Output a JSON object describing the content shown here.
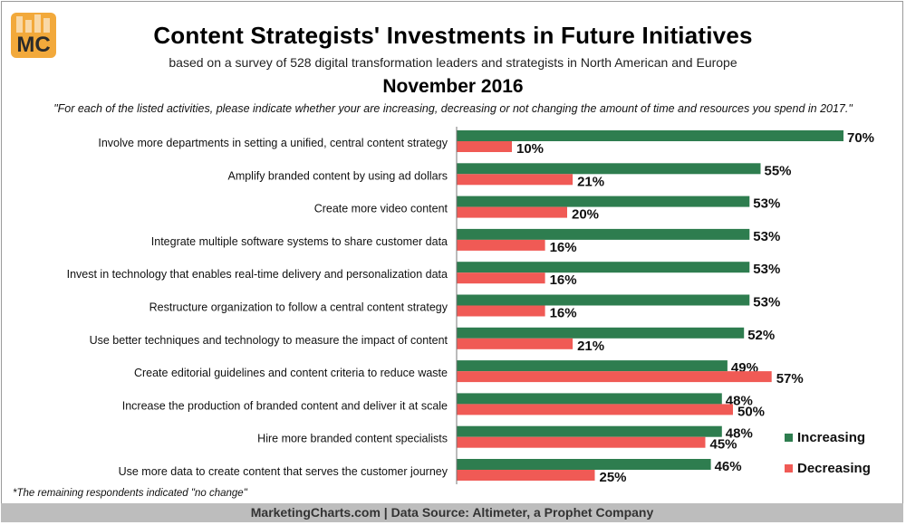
{
  "logo": {
    "text": "MC"
  },
  "colors": {
    "increasing": "#2e7d4f",
    "decreasing": "#f05a55",
    "logo_bg": "#f2a93b",
    "footer_bg": "#bdbdbd"
  },
  "footnote": "*The remaining respondents indicated \"no change\"",
  "footer": "MarketingCharts.com | Data Source: Altimeter, a Prophet Company",
  "chart_data": {
    "type": "bar",
    "orientation": "horizontal",
    "title": "Content Strategists' Investments in Future Initiatives",
    "subtitle": "based on a survey of 528 digital transformation leaders and strategists in North American and Europe",
    "date": "November 2016",
    "question": "\"For each of the listed activities, please indicate whether your are increasing, decreasing or not changing the amount of time and resources you spend in 2017.\"",
    "value_suffix": "%",
    "xlim": [
      0,
      70
    ],
    "legend_position": "bottom-right",
    "categories": [
      "Involve more departments in setting a unified, central content strategy",
      "Amplify branded content by using ad dollars",
      "Create more video content",
      "Integrate multiple software systems to share customer data",
      "Invest in technology that enables real-time delivery and personalization data",
      "Restructure organization to follow a central content strategy",
      "Use better techniques and technology to measure the impact of content",
      "Create editorial guidelines and content criteria to reduce waste",
      "Increase the production of branded content and deliver it at scale",
      "Hire more branded content specialists",
      "Use more data to create content that serves the customer journey"
    ],
    "series": [
      {
        "name": "Increasing",
        "values": [
          70,
          55,
          53,
          53,
          53,
          53,
          52,
          49,
          48,
          48,
          46
        ]
      },
      {
        "name": "Decreasing",
        "values": [
          10,
          21,
          20,
          16,
          16,
          16,
          21,
          57,
          50,
          45,
          25
        ]
      }
    ]
  }
}
